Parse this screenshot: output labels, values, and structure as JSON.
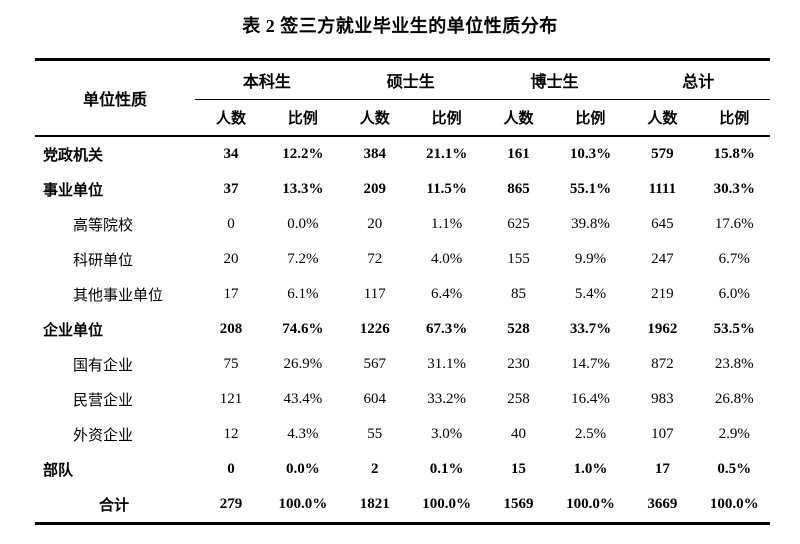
{
  "title": "表 2 签三方就业毕业生的单位性质分布",
  "table": {
    "row_header": "单位性质",
    "groups": [
      {
        "label": "本科生",
        "columns": [
          "人数",
          "比例"
        ]
      },
      {
        "label": "硕士生",
        "columns": [
          "人数",
          "比例"
        ]
      },
      {
        "label": "博士生",
        "columns": [
          "人数",
          "比例"
        ]
      },
      {
        "label": "总计",
        "columns": [
          "人数",
          "比例"
        ]
      }
    ],
    "rows": [
      {
        "label": "党政机关",
        "level": 0,
        "bold": true,
        "values": [
          "34",
          "12.2%",
          "384",
          "21.1%",
          "161",
          "10.3%",
          "579",
          "15.8%"
        ]
      },
      {
        "label": "事业单位",
        "level": 0,
        "bold": true,
        "values": [
          "37",
          "13.3%",
          "209",
          "11.5%",
          "865",
          "55.1%",
          "1111",
          "30.3%"
        ]
      },
      {
        "label": "高等院校",
        "level": 1,
        "bold": false,
        "values": [
          "0",
          "0.0%",
          "20",
          "1.1%",
          "625",
          "39.8%",
          "645",
          "17.6%"
        ]
      },
      {
        "label": "科研单位",
        "level": 1,
        "bold": false,
        "values": [
          "20",
          "7.2%",
          "72",
          "4.0%",
          "155",
          "9.9%",
          "247",
          "6.7%"
        ]
      },
      {
        "label": "其他事业单位",
        "level": 1,
        "bold": false,
        "values": [
          "17",
          "6.1%",
          "117",
          "6.4%",
          "85",
          "5.4%",
          "219",
          "6.0%"
        ]
      },
      {
        "label": "企业单位",
        "level": 0,
        "bold": true,
        "values": [
          "208",
          "74.6%",
          "1226",
          "67.3%",
          "528",
          "33.7%",
          "1962",
          "53.5%"
        ]
      },
      {
        "label": "国有企业",
        "level": 1,
        "bold": false,
        "values": [
          "75",
          "26.9%",
          "567",
          "31.1%",
          "230",
          "14.7%",
          "872",
          "23.8%"
        ]
      },
      {
        "label": "民营企业",
        "level": 1,
        "bold": false,
        "values": [
          "121",
          "43.4%",
          "604",
          "33.2%",
          "258",
          "16.4%",
          "983",
          "26.8%"
        ]
      },
      {
        "label": "外资企业",
        "level": 1,
        "bold": false,
        "values": [
          "12",
          "4.3%",
          "55",
          "3.0%",
          "40",
          "2.5%",
          "107",
          "2.9%"
        ]
      },
      {
        "label": "部队",
        "level": 0,
        "bold": true,
        "values": [
          "0",
          "0.0%",
          "2",
          "0.1%",
          "15",
          "1.0%",
          "17",
          "0.5%"
        ]
      },
      {
        "label": "合计",
        "level": 2,
        "bold": true,
        "values": [
          "279",
          "100.0%",
          "1821",
          "100.0%",
          "1569",
          "100.0%",
          "3669",
          "100.0%"
        ]
      }
    ]
  }
}
